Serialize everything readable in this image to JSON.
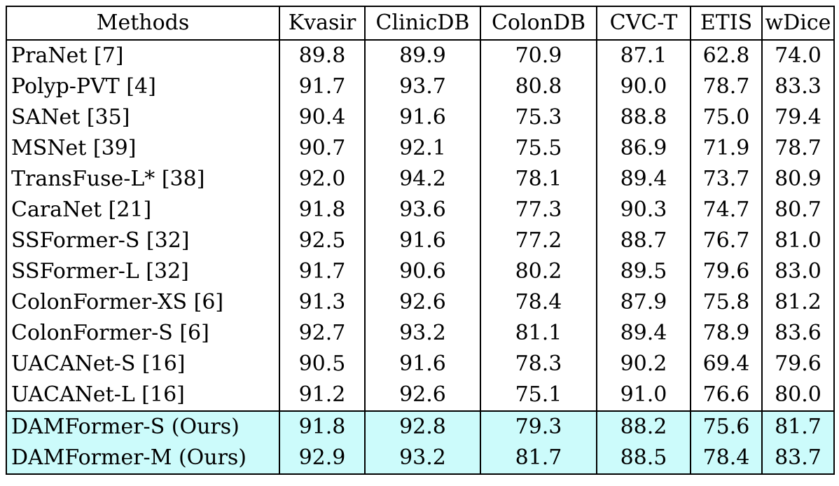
{
  "table": {
    "headers": [
      "Methods",
      "Kvasir",
      "ClinicDB",
      "ColonDB",
      "CVC-T",
      "ETIS",
      "wDice"
    ],
    "rows": [
      {
        "method": "PraNet [7]",
        "values": [
          "89.8",
          "89.9",
          "70.9",
          "87.1",
          "62.8",
          "74.0"
        ]
      },
      {
        "method": "Polyp-PVT [4]",
        "values": [
          "91.7",
          "93.7",
          "80.8",
          "90.0",
          "78.7",
          "83.3"
        ]
      },
      {
        "method": "SANet [35]",
        "values": [
          "90.4",
          "91.6",
          "75.3",
          "88.8",
          "75.0",
          "79.4"
        ]
      },
      {
        "method": "MSNet [39]",
        "values": [
          "90.7",
          "92.1",
          "75.5",
          "86.9",
          "71.9",
          "78.7"
        ]
      },
      {
        "method": "TransFuse-L* [38]",
        "values": [
          "92.0",
          "94.2",
          "78.1",
          "89.4",
          "73.7",
          "80.9"
        ]
      },
      {
        "method": "CaraNet [21]",
        "values": [
          "91.8",
          "93.6",
          "77.3",
          "90.3",
          "74.7",
          "80.7"
        ]
      },
      {
        "method": "SSFormer-S [32]",
        "values": [
          "92.5",
          "91.6",
          "77.2",
          "88.7",
          "76.7",
          "81.0"
        ]
      },
      {
        "method": "SSFormer-L [32]",
        "values": [
          "91.7",
          "90.6",
          "80.2",
          "89.5",
          "79.6",
          "83.0"
        ]
      },
      {
        "method": "ColonFormer-XS [6]",
        "values": [
          "91.3",
          "92.6",
          "78.4",
          "87.9",
          "75.8",
          "81.2"
        ]
      },
      {
        "method": "ColonFormer-S [6]",
        "values": [
          "92.7",
          "93.2",
          "81.1",
          "89.4",
          "78.9",
          "83.6"
        ]
      },
      {
        "method": "UACANet-S [16]",
        "values": [
          "90.5",
          "91.6",
          "78.3",
          "90.2",
          "69.4",
          "79.6"
        ]
      },
      {
        "method": "UACANet-L [16]",
        "values": [
          "91.2",
          "92.6",
          "75.1",
          "91.0",
          "76.6",
          "80.0"
        ]
      }
    ],
    "ours_rows": [
      {
        "method": "DAMFormer-S (Ours)",
        "values": [
          "91.8",
          "92.8",
          "79.3",
          "88.2",
          "75.6",
          "81.7"
        ]
      },
      {
        "method": "DAMFormer-M (Ours)",
        "values": [
          "92.9",
          "93.2",
          "81.7",
          "88.5",
          "78.4",
          "83.7"
        ]
      }
    ],
    "highlight_color": "#ccfbfb"
  }
}
